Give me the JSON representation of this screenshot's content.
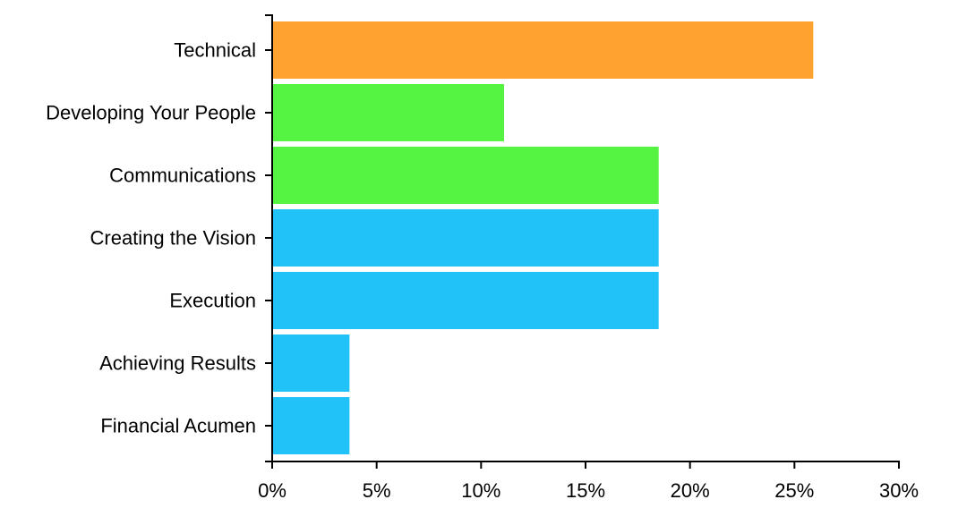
{
  "chart_data": {
    "type": "bar",
    "orientation": "horizontal",
    "categories": [
      "Technical",
      "Developing Your People",
      "Communications",
      "Creating the Vision",
      "Execution",
      "Achieving Results",
      "Financial Acumen"
    ],
    "values": [
      25.9,
      11.1,
      18.5,
      18.5,
      18.5,
      3.7,
      3.7
    ],
    "bar_colors": [
      "#ffa22f",
      "#56f442",
      "#56f442",
      "#20c2f7",
      "#20c2f7",
      "#20c2f7",
      "#20c2f7"
    ],
    "xlim": [
      0,
      30
    ],
    "x_ticks": [
      0,
      5,
      10,
      15,
      20,
      25,
      30
    ],
    "x_tick_labels": [
      "0%",
      "5%",
      "10%",
      "15%",
      "20%",
      "25%",
      "30%"
    ],
    "title": "",
    "xlabel": "",
    "ylabel": "",
    "grid": false,
    "legend": "none"
  }
}
